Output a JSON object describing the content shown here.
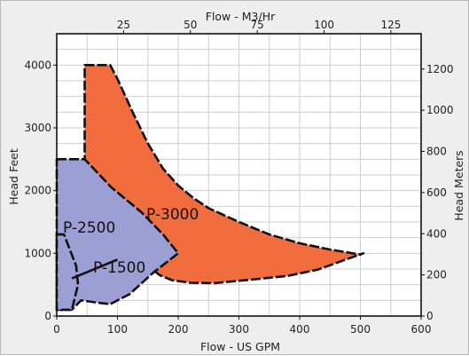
{
  "chart_data": {
    "type": "area",
    "title": "",
    "xlabel": "Flow - US GPM",
    "ylabel": "Head Feet",
    "x2label": "Flow - M3/Hr",
    "y2label": "Head Meters",
    "xlim": [
      0,
      600
    ],
    "ylim": [
      0,
      4500
    ],
    "xticks": [
      0,
      100,
      200,
      300,
      400,
      500,
      600
    ],
    "yticks": [
      0,
      1000,
      2000,
      3000,
      4000
    ],
    "x2lim": [
      0,
      136.3
    ],
    "x2ticks": [
      25,
      50,
      75,
      100,
      125
    ],
    "y2lim": [
      0,
      1371.6
    ],
    "y2ticks": [
      0,
      200,
      400,
      600,
      800,
      1000,
      1200
    ],
    "grid": true,
    "series": [
      {
        "name": "P-3000",
        "color": "#f26d3d",
        "points": [
          [
            46,
            4000
          ],
          [
            88,
            4000
          ],
          [
            100,
            3780
          ],
          [
            125,
            3250
          ],
          [
            150,
            2750
          ],
          [
            175,
            2350
          ],
          [
            200,
            2080
          ],
          [
            225,
            1880
          ],
          [
            250,
            1720
          ],
          [
            300,
            1500
          ],
          [
            350,
            1300
          ],
          [
            400,
            1160
          ],
          [
            450,
            1060
          ],
          [
            500,
            980
          ],
          [
            505,
            1000
          ],
          [
            470,
            880
          ],
          [
            430,
            740
          ],
          [
            380,
            640
          ],
          [
            320,
            580
          ],
          [
            260,
            525
          ],
          [
            220,
            530
          ],
          [
            190,
            570
          ],
          [
            170,
            650
          ],
          [
            150,
            800
          ],
          [
            80,
            1800
          ],
          [
            46,
            2500
          ]
        ]
      },
      {
        "name": "P-2500",
        "color": "#9b9fd3",
        "points": [
          [
            0,
            2500
          ],
          [
            46,
            2500
          ],
          [
            90,
            2050
          ],
          [
            140,
            1650
          ],
          [
            175,
            1300
          ],
          [
            200,
            1000
          ],
          [
            160,
            700
          ],
          [
            120,
            350
          ],
          [
            88,
            190
          ],
          [
            70,
            210
          ],
          [
            40,
            250
          ],
          [
            25,
            100
          ],
          [
            0,
            100
          ]
        ]
      },
      {
        "name": "P-1500",
        "color": "#9b9fd3",
        "points": [
          [
            0,
            1300
          ],
          [
            12,
            1300
          ],
          [
            32,
            800
          ],
          [
            35,
            500
          ],
          [
            25,
            100
          ],
          [
            0,
            100
          ]
        ]
      }
    ]
  }
}
